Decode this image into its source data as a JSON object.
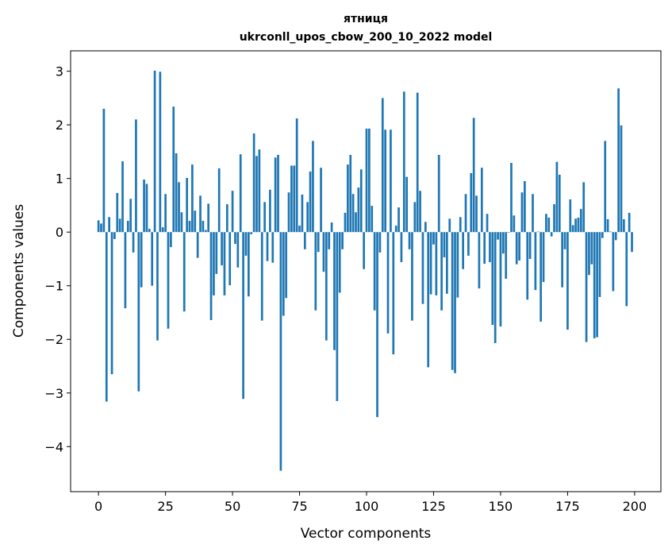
{
  "chart_data": {
    "type": "bar",
    "title": [
      "ятниця",
      "ukrconll_upos_cbow_200_10_2022 model"
    ],
    "xlabel": "Vector components",
    "ylabel": "Components values",
    "xlim": [
      -10.4,
      209.8
    ],
    "ylim": [
      -4.84,
      3.38
    ],
    "xticks": [
      0,
      25,
      50,
      75,
      100,
      125,
      150,
      175,
      200
    ],
    "yticks": [
      -4,
      -3,
      -2,
      -1,
      0,
      1,
      2,
      3
    ],
    "ytick_labels": [
      "−4",
      "−3",
      "−2",
      "−1",
      "0",
      "1",
      "2",
      "3"
    ],
    "grid": false,
    "color": "#1f77b4",
    "values": [
      0.22,
      0.16,
      2.3,
      -3.16,
      0.28,
      -2.65,
      -0.13,
      0.73,
      0.25,
      1.32,
      -1.42,
      0.21,
      0.62,
      -0.38,
      2.1,
      -2.97,
      -1.03,
      0.98,
      0.9,
      0.06,
      -1.0,
      3.01,
      -2.02,
      2.99,
      0.09,
      0.71,
      -1.8,
      -0.28,
      2.34,
      1.47,
      0.93,
      0.37,
      -1.48,
      1.01,
      0.21,
      1.26,
      0.4,
      -0.48,
      0.68,
      0.21,
      0.04,
      0.53,
      -1.64,
      -1.18,
      -0.78,
      1.19,
      -0.62,
      -1.18,
      0.52,
      -0.99,
      0.77,
      -0.22,
      -0.66,
      1.45,
      -3.11,
      -0.44,
      -1.2,
      -0.04,
      1.84,
      1.42,
      1.54,
      -1.65,
      0.56,
      -0.54,
      0.79,
      -0.57,
      1.39,
      1.44,
      -4.45,
      -1.56,
      -1.23,
      0.74,
      1.24,
      1.24,
      2.12,
      0.12,
      0.7,
      -0.32,
      0.56,
      1.13,
      1.7,
      -1.46,
      -0.37,
      1.2,
      -0.74,
      -2.02,
      -0.32,
      0.18,
      -2.2,
      -3.15,
      -1.13,
      -0.32,
      0.36,
      1.26,
      1.44,
      0.71,
      0.37,
      0.83,
      1.17,
      -0.69,
      1.93,
      1.93,
      0.49,
      -1.46,
      -3.45,
      -0.38,
      2.5,
      1.91,
      -1.89,
      1.91,
      -2.28,
      0.12,
      0.46,
      -0.56,
      2.62,
      1.03,
      -0.32,
      -1.65,
      0.56,
      2.6,
      0.77,
      -1.34,
      0.19,
      -2.52,
      -1.16,
      -0.23,
      -1.18,
      1.44,
      -1.46,
      -0.47,
      -1.15,
      0.25,
      -2.57,
      -2.63,
      -1.22,
      0.28,
      -0.69,
      0.71,
      -0.44,
      1.1,
      2.13,
      0.68,
      -1.05,
      1.2,
      -0.59,
      0.34,
      -0.56,
      -1.73,
      -2.07,
      -0.14,
      -1.76,
      -0.4,
      -0.87,
      -0.01,
      1.29,
      0.31,
      -0.6,
      -0.53,
      0.74,
      0.95,
      -1.26,
      -0.5,
      0.71,
      -1.08,
      0.01,
      -1.67,
      -0.93,
      0.34,
      0.27,
      -0.08,
      0.52,
      1.31,
      1.07,
      -1.03,
      -0.32,
      -1.82,
      0.61,
      0.13,
      0.25,
      0.27,
      0.43,
      0.93,
      -2.05,
      -0.8,
      -0.6,
      -1.98,
      -1.96,
      -1.21,
      -0.11,
      1.7,
      0.24,
      0.01,
      -1.1,
      -0.15,
      2.68,
      1.99,
      0.24,
      -1.38,
      0.36,
      -0.37
    ]
  }
}
